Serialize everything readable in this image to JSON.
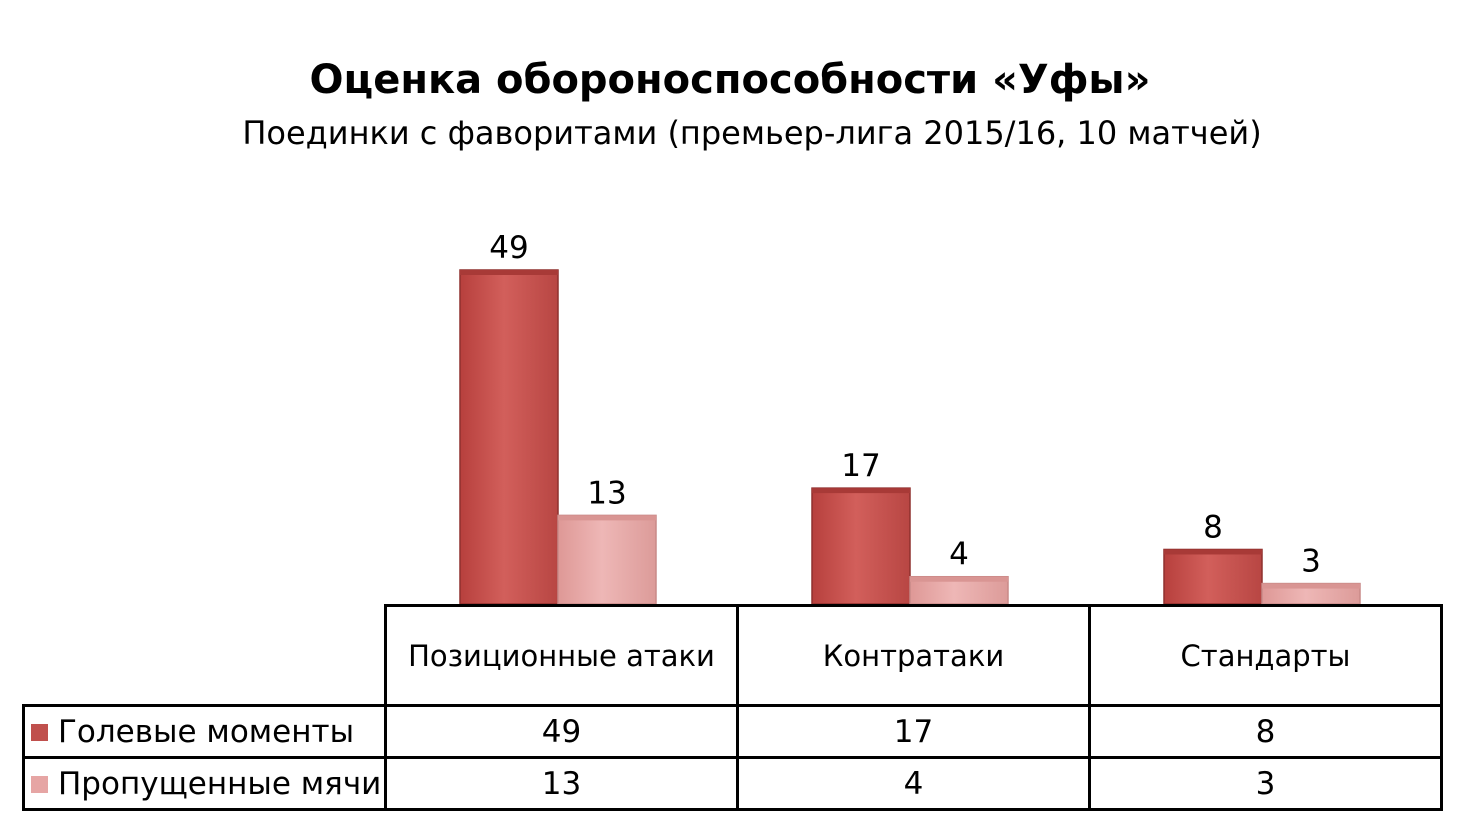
{
  "chart_data": {
    "type": "bar",
    "title": "Оценка обороноспособности «Уфы»",
    "subtitle": "Поединки с фаворитами (премьер-лига  2015/16, 10 матчей)",
    "categories": [
      "Позиционные атаки",
      "Контратаки",
      "Стандарты"
    ],
    "series": [
      {
        "name": "Голевые моменты",
        "values": [
          49,
          17,
          8
        ],
        "color": "#c0504d"
      },
      {
        "name": "Пропущенные мячи",
        "values": [
          13,
          4,
          3
        ],
        "color": "#e6a5a4"
      }
    ],
    "ylim": [
      0,
      49
    ],
    "grid": false,
    "legend": "data-table"
  }
}
